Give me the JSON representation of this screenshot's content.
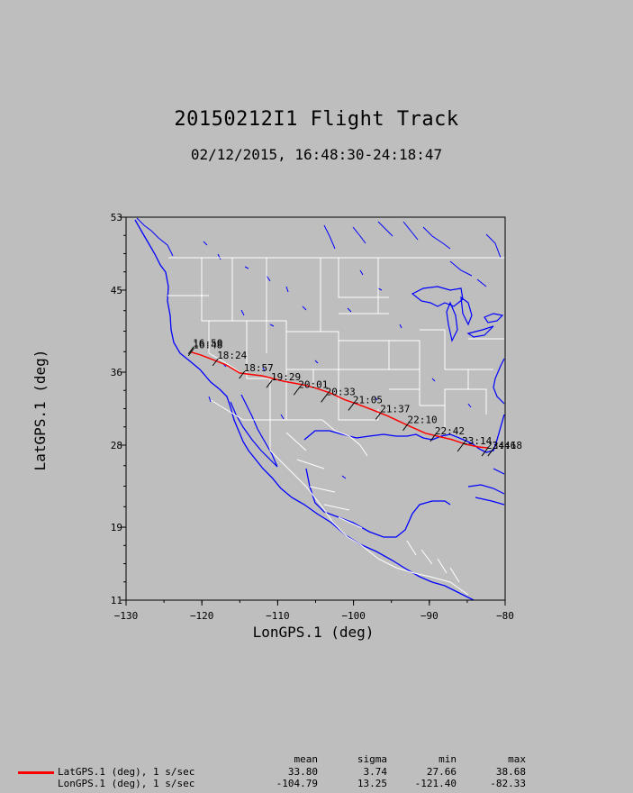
{
  "title": "20150212I1 Flight Track",
  "subtitle": "02/12/2015, 16:48:30-24:18:47",
  "chart_data": {
    "type": "map-line",
    "xlabel": "LonGPS.1 (deg)",
    "ylabel": "LatGPS.1 (deg)",
    "xlim": [
      -130,
      -80
    ],
    "ylim": [
      11,
      53
    ],
    "x_ticks": [
      -130,
      -120,
      -110,
      -100,
      -90,
      -80
    ],
    "y_ticks": [
      11,
      19,
      28,
      36,
      45,
      53
    ],
    "grid": false,
    "series": [
      {
        "name": "LatGPS.1 (deg), 1 s/sec",
        "color": "#ff0000",
        "points": [
          [
            -121.4,
            38.2
          ],
          [
            -120.2,
            37.9
          ],
          [
            -118.6,
            37.4
          ],
          [
            -116.8,
            36.8
          ],
          [
            -115.0,
            35.9
          ],
          [
            -112.0,
            35.6
          ],
          [
            -109.2,
            35.0
          ],
          [
            -106.5,
            34.6
          ],
          [
            -104.8,
            34.2
          ],
          [
            -103.0,
            33.7
          ],
          [
            -101.2,
            33.0
          ],
          [
            -99.5,
            32.5
          ],
          [
            -97.6,
            31.9
          ],
          [
            -95.5,
            31.2
          ],
          [
            -94.2,
            30.7
          ],
          [
            -92.4,
            30.0
          ],
          [
            -90.5,
            29.3
          ],
          [
            -89.0,
            29.0
          ],
          [
            -87.0,
            28.6
          ],
          [
            -85.2,
            28.1
          ],
          [
            -83.5,
            27.8
          ],
          [
            -82.3,
            27.7
          ]
        ]
      }
    ],
    "time_labels": [
      {
        "text": "16:48",
        "lon": -121.3,
        "lat": 38.4
      },
      {
        "text": "16:50",
        "lon": -121.3,
        "lat": 38.6
      },
      {
        "text": "18:24",
        "lon": -118.1,
        "lat": 37.3
      },
      {
        "text": "18:57",
        "lon": -114.6,
        "lat": 35.9
      },
      {
        "text": "19:29",
        "lon": -111.0,
        "lat": 34.9
      },
      {
        "text": "20:01",
        "lon": -107.4,
        "lat": 34.1
      },
      {
        "text": "20:33",
        "lon": -103.8,
        "lat": 33.3
      },
      {
        "text": "21:05",
        "lon": -100.2,
        "lat": 32.4
      },
      {
        "text": "21:37",
        "lon": -96.6,
        "lat": 31.4
      },
      {
        "text": "22:10",
        "lon": -93.0,
        "lat": 30.2
      },
      {
        "text": "22:42",
        "lon": -89.4,
        "lat": 29.0
      },
      {
        "text": "23:14",
        "lon": -85.8,
        "lat": 27.9
      },
      {
        "text": "23:46",
        "lon": -82.6,
        "lat": 27.4
      },
      {
        "text": "24:18",
        "lon": -81.8,
        "lat": 27.4
      }
    ]
  },
  "legend": {
    "headers": {
      "mean": "mean",
      "sigma": "sigma",
      "min": "min",
      "max": "max"
    },
    "rows": [
      {
        "name": "LatGPS.1 (deg), 1 s/sec",
        "mean": "33.80",
        "sigma": "3.74",
        "min": "27.66",
        "max": "38.68",
        "color": "#ff0000",
        "line": true
      },
      {
        "name": "LonGPS.1 (deg), 1 s/sec",
        "mean": "-104.79",
        "sigma": "13.25",
        "min": "-121.40",
        "max": "-82.33",
        "line": false
      }
    ]
  }
}
